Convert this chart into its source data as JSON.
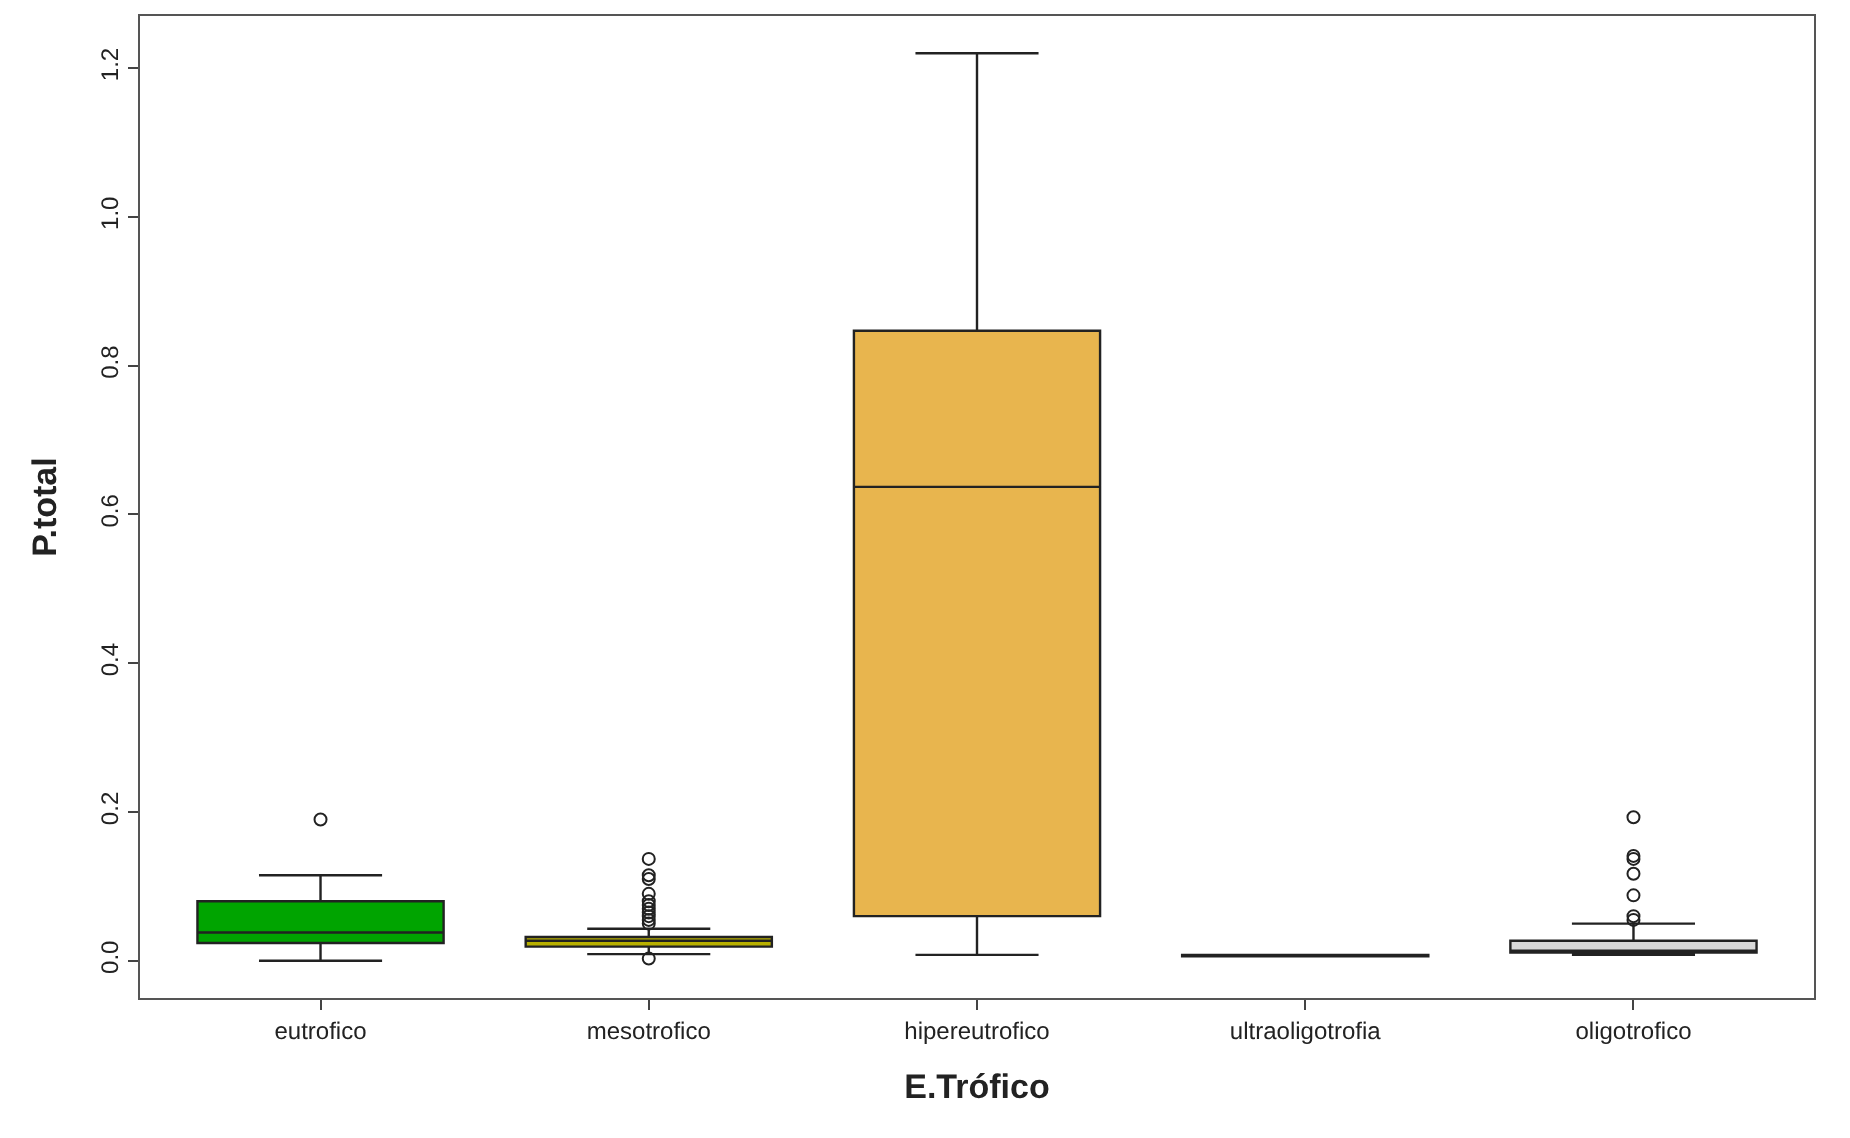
{
  "chart_data": {
    "type": "box",
    "xlabel": "E.Trófico",
    "ylabel": "P.total",
    "categories": [
      "eutrofico",
      "mesotrofico",
      "hipereutrofico",
      "ultraoligotrofia",
      "oligotrofico"
    ],
    "colors": [
      "#00a400",
      "#b8b000",
      "#e8b54e",
      "#222222",
      "#d9d9d9"
    ],
    "boxes": [
      {
        "low": 0.0,
        "q1": 0.024,
        "median": 0.038,
        "q3": 0.08,
        "high": 0.115,
        "outliers": [
          0.19
        ]
      },
      {
        "low": 0.009,
        "q1": 0.019,
        "median": 0.027,
        "q3": 0.032,
        "high": 0.043,
        "outliers": [
          0.003,
          0.05,
          0.055,
          0.06,
          0.065,
          0.07,
          0.075,
          0.08,
          0.09,
          0.11,
          0.115,
          0.137
        ]
      },
      {
        "low": 0.008,
        "q1": 0.06,
        "median": 0.637,
        "q3": 0.847,
        "high": 1.22
      },
      {
        "low": 0.006,
        "q1": 0.006,
        "median": 0.007,
        "q3": 0.008,
        "high": 0.008
      },
      {
        "low": 0.008,
        "q1": 0.011,
        "median": 0.013,
        "q3": 0.027,
        "high": 0.05,
        "outliers": [
          0.055,
          0.06,
          0.088,
          0.117,
          0.137,
          0.141,
          0.193
        ]
      }
    ],
    "ylim": [
      -0.05,
      1.27
    ],
    "yticks": [
      {
        "value": 0,
        "label": "0.0"
      },
      0.2,
      0.4,
      0.6,
      0.8,
      {
        "value": 1,
        "label": "1.0"
      },
      1.2
    ],
    "marker": "circle"
  }
}
